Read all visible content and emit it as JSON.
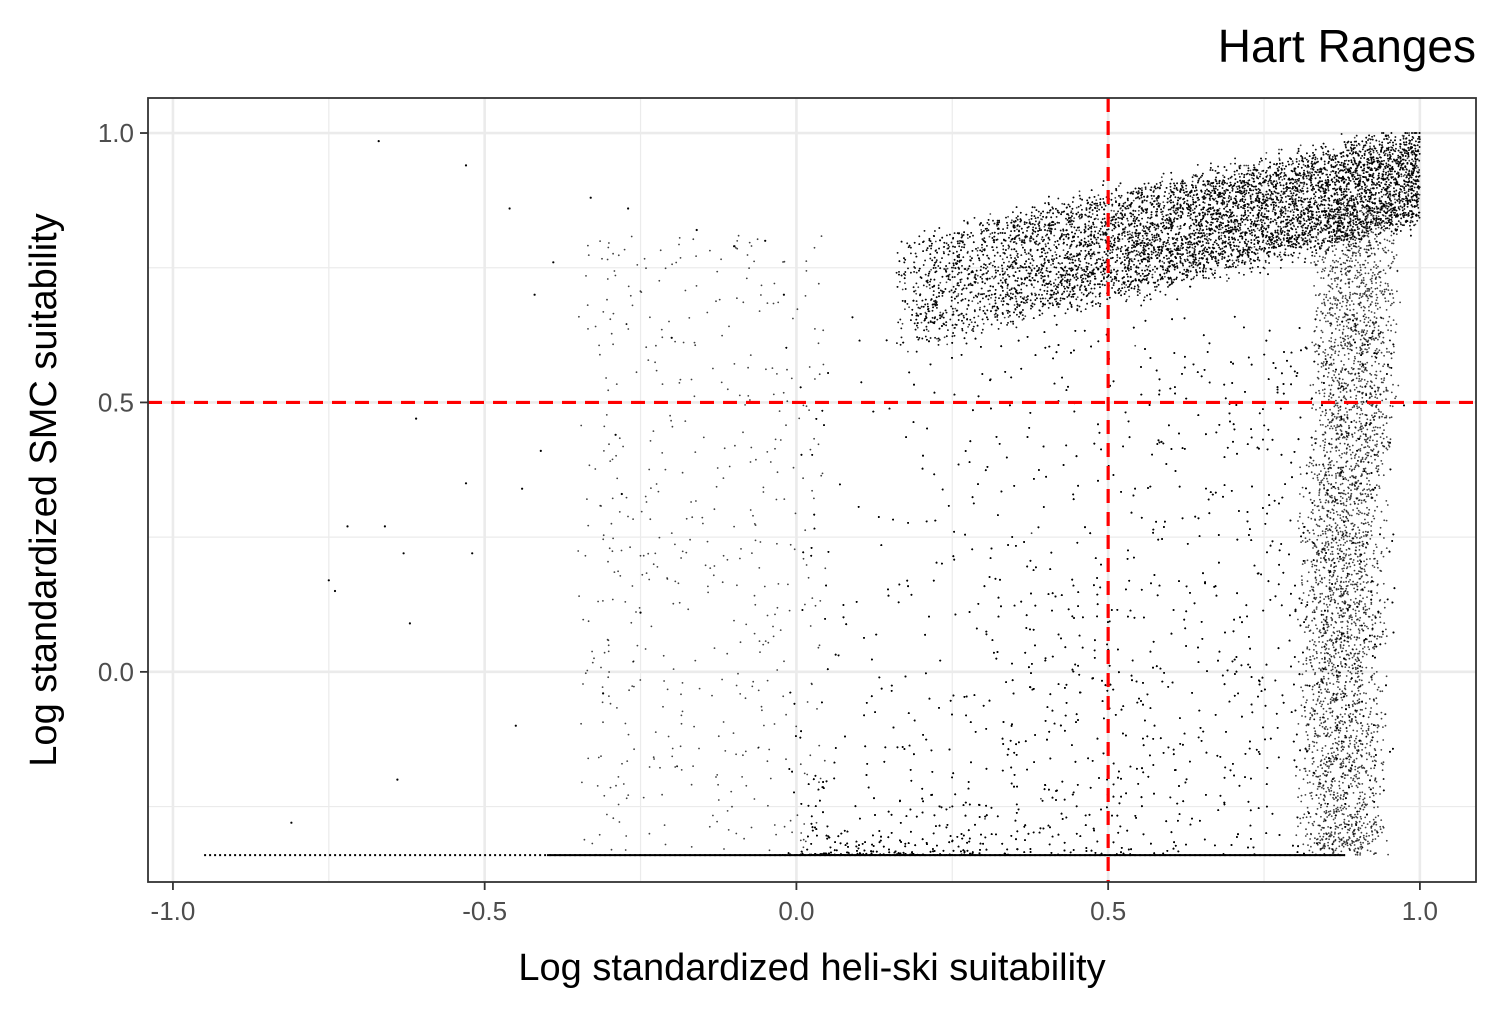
{
  "chart_data": {
    "type": "scatter",
    "title": "Hart  Ranges",
    "xlabel": "Log standardized heli-ski suitability",
    "ylabel": "Log standardized SMC suitability",
    "xlim": [
      -1.04,
      1.09
    ],
    "ylim": [
      -0.39,
      1.065
    ],
    "x_ticks": [
      -1.0,
      -0.5,
      0.0,
      0.5,
      1.0
    ],
    "x_tick_labels": [
      "-1.0",
      "-0.5",
      "0.0",
      "0.5",
      "1.0"
    ],
    "y_ticks": [
      0.0,
      0.5,
      1.0
    ],
    "y_tick_labels": [
      "0.0",
      "0.5",
      "1.0"
    ],
    "x_minor_ticks": [
      -0.75,
      -0.25,
      0.25,
      0.75
    ],
    "y_minor_ticks": [
      -0.25,
      0.25,
      0.75
    ],
    "reference_lines": [
      {
        "orientation": "vertical",
        "value": 0.5,
        "color": "#ff0000",
        "style": "dashed"
      },
      {
        "orientation": "horizontal",
        "value": 0.5,
        "color": "#ff0000",
        "style": "dashed"
      }
    ],
    "grid": true,
    "legend": "none",
    "point_color": "#000000",
    "point_cloud_summary": {
      "dense_band": {
        "x_range": [
          0.16,
          1.0
        ],
        "y_at_x_start": [
          0.6,
          0.8
        ],
        "y_at_x_end": [
          0.84,
          1.0
        ]
      },
      "floor_line": {
        "y": -0.34,
        "x_range": [
          -0.95,
          0.88
        ]
      },
      "vertical_streaks_x_range": [
        0.0,
        0.95
      ]
    },
    "points": [
      [
        -0.67,
        0.985
      ],
      [
        -0.53,
        0.94
      ],
      [
        -0.33,
        0.88
      ],
      [
        -0.27,
        0.86
      ],
      [
        -0.46,
        0.86
      ],
      [
        -0.39,
        0.76
      ],
      [
        -0.42,
        0.7
      ],
      [
        -0.75,
        0.17
      ],
      [
        -0.74,
        0.15
      ],
      [
        -0.72,
        0.27
      ],
      [
        -0.66,
        0.27
      ],
      [
        -0.63,
        0.22
      ],
      [
        -0.61,
        0.47
      ],
      [
        -0.53,
        0.35
      ],
      [
        -0.52,
        0.22
      ],
      [
        -0.44,
        0.34
      ],
      [
        -0.41,
        0.41
      ],
      [
        -0.29,
        0.44
      ],
      [
        -0.25,
        0.11
      ],
      [
        -0.64,
        -0.2
      ],
      [
        -0.62,
        0.09
      ],
      [
        -0.45,
        -0.1
      ],
      [
        -0.81,
        -0.28
      ],
      [
        -0.31,
        -0.04
      ],
      [
        -0.28,
        0.33
      ],
      [
        -0.2,
        0.62
      ],
      [
        -0.16,
        0.82
      ],
      [
        -0.1,
        0.79
      ],
      [
        -0.05,
        0.8
      ],
      [
        -0.02,
        0.7
      ]
    ]
  }
}
